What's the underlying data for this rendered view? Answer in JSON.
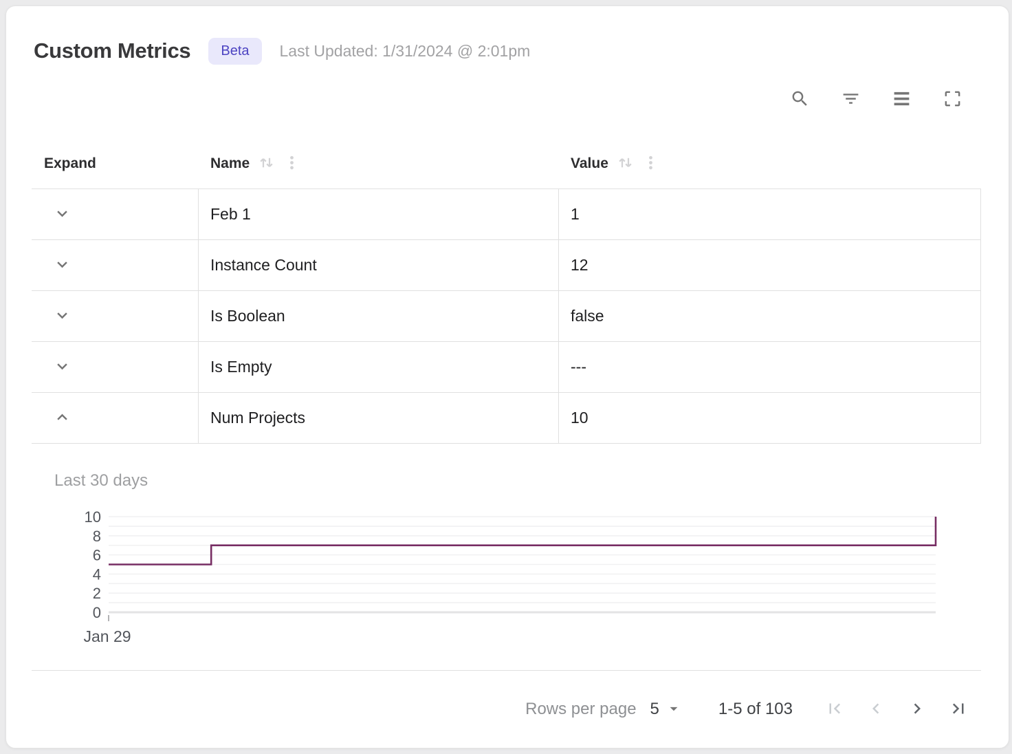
{
  "header": {
    "title": "Custom Metrics",
    "badge": "Beta",
    "last_updated": "Last Updated: 1/31/2024 @ 2:01pm"
  },
  "toolbar": {
    "icons": [
      "search",
      "filter",
      "density",
      "fullscreen"
    ]
  },
  "table": {
    "headers": {
      "expand": "Expand",
      "name": "Name",
      "value": "Value"
    },
    "rows": [
      {
        "name": "Feb 1",
        "value": "1",
        "expanded": false
      },
      {
        "name": "Instance Count",
        "value": "12",
        "expanded": false
      },
      {
        "name": "Is Boolean",
        "value": "false",
        "expanded": false
      },
      {
        "name": "Is Empty",
        "value": "---",
        "expanded": false
      },
      {
        "name": "Num Projects",
        "value": "10",
        "expanded": true
      }
    ]
  },
  "expanded_panel": {
    "title": "Last 30 days",
    "for_row": "Num Projects"
  },
  "chart_data": {
    "type": "line",
    "subtype": "step",
    "title": "Last 30 days",
    "xlabel": "",
    "ylabel": "",
    "x_tick_labels": [
      "Jan 29"
    ],
    "y_ticks": [
      0,
      2,
      4,
      6,
      8,
      10
    ],
    "ylim": [
      0,
      10
    ],
    "grid": true,
    "legend": "none",
    "line_color": "#772d63",
    "points_frac": [
      [
        0,
        5
      ],
      [
        0.124,
        5
      ],
      [
        0.124,
        7
      ],
      [
        1,
        7
      ],
      [
        1,
        10
      ]
    ],
    "note": "Step line holds at 5, steps to 7 at ~12% of range, rises to 10 at right edge"
  },
  "pagination": {
    "rows_per_page_label": "Rows per page",
    "rows_per_page_value": "5",
    "range_label": "1-5 of 103"
  },
  "colors": {
    "accent_line": "#772d63",
    "badge_bg": "#e9e8fb",
    "badge_text": "#4c43c2",
    "border": "#e0e0e0",
    "icon_gray": "#757575"
  }
}
